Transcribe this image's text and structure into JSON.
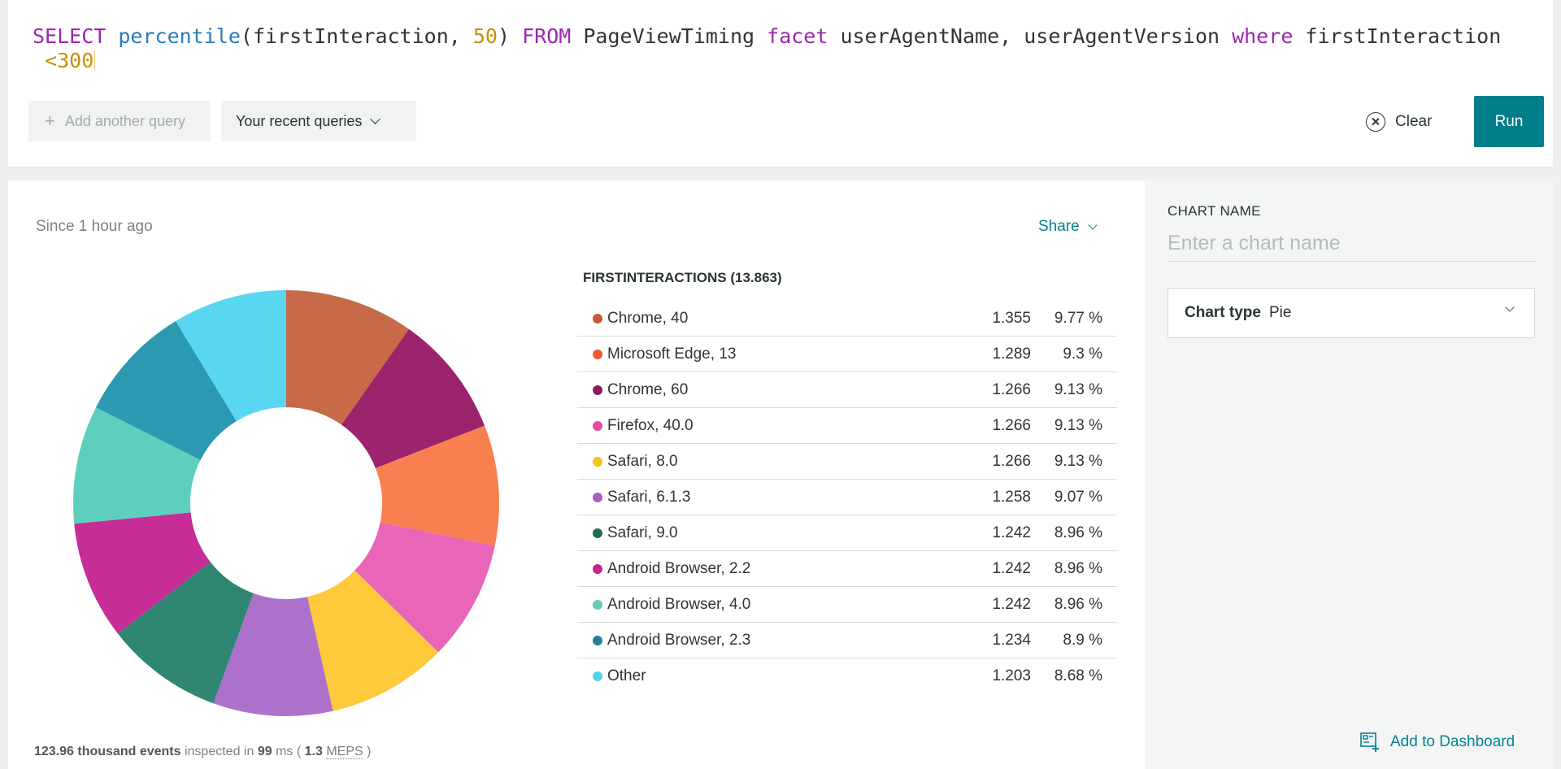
{
  "query": {
    "tokens": [
      {
        "text": "SELECT",
        "type": "kw"
      },
      {
        "text": " ",
        "type": "plain"
      },
      {
        "text": "percentile",
        "type": "fn"
      },
      {
        "text": "(firstInteraction, ",
        "type": "plain"
      },
      {
        "text": "50",
        "type": "num"
      },
      {
        "text": ") ",
        "type": "plain"
      },
      {
        "text": "FROM",
        "type": "kw"
      },
      {
        "text": " PageViewTiming ",
        "type": "plain"
      },
      {
        "text": "facet",
        "type": "kw"
      },
      {
        "text": " userAgentName, userAgentVersion ",
        "type": "plain"
      },
      {
        "text": "where",
        "type": "kw"
      },
      {
        "text": " firstInteraction\n ",
        "type": "plain"
      },
      {
        "text": "<300",
        "type": "num"
      }
    ]
  },
  "toolbar": {
    "add_query_label": "Add another query",
    "recent_queries_label": "Your recent queries",
    "clear_label": "Clear",
    "run_label": "Run"
  },
  "chart": {
    "since_label": "Since 1 hour ago",
    "share_label": "Share",
    "legend_title": "FIRSTINTERACTIONS (13.863)",
    "stats": {
      "events": "123.96 thousand events",
      "inspected_in": "inspected in",
      "ms": "99",
      "ms_unit": "ms (",
      "meps_value": "1.3",
      "meps_label": "MEPS",
      "close": ")"
    }
  },
  "chart_data": {
    "type": "pie",
    "title": "FIRSTINTERACTIONS (13.863)",
    "donut": true,
    "categories": [
      "Chrome, 40",
      "Microsoft Edge, 13",
      "Chrome, 60",
      "Firefox, 40.0",
      "Safari, 8.0",
      "Safari, 6.1.3",
      "Safari, 9.0",
      "Android Browser, 2.2",
      "Android Browser, 4.0",
      "Android Browser, 2.3",
      "Other"
    ],
    "values": [
      1.355,
      1.289,
      1.266,
      1.266,
      1.266,
      1.258,
      1.242,
      1.242,
      1.242,
      1.234,
      1.203
    ],
    "value_labels": [
      "1.355",
      "1.289",
      "1.266",
      "1.266",
      "1.266",
      "1.258",
      "1.242",
      "1.242",
      "1.242",
      "1.234",
      "1.203"
    ],
    "percent_labels": [
      "9.77 %",
      "9.3 %",
      "9.13 %",
      "9.13 %",
      "9.13 %",
      "9.07 %",
      "8.96 %",
      "8.96 %",
      "8.96 %",
      "8.9 %",
      "8.68 %"
    ],
    "legend_dot_colors": [
      "#c45a37",
      "#f05a30",
      "#8e1b5c",
      "#e34c9f",
      "#f7c41a",
      "#a65cc2",
      "#1d6b57",
      "#c42592",
      "#5ecfb6",
      "#267f99",
      "#52d4ef"
    ],
    "slice_colors": [
      "#c66a48",
      "#9b246d",
      "#f97f51",
      "#e865b8",
      "#fec93a",
      "#ad71cb",
      "#2e8673",
      "#c62d97",
      "#5fcfbd",
      "#2a99b1",
      "#59d7f0"
    ]
  },
  "sidebar": {
    "chart_name_label": "CHART NAME",
    "chart_name_placeholder": "Enter a chart name",
    "chart_name_value": "",
    "chart_type_label": "Chart type",
    "chart_type_value": "Pie",
    "add_to_dashboard_label": "Add to Dashboard"
  },
  "icons": {
    "add": "plus-icon",
    "recent": "chevron-down-icon",
    "clear": "close-circle-icon",
    "share": "chevron-down-icon",
    "chart_type": "chevron-down-icon",
    "dashboard": "dashboard-add-icon"
  }
}
